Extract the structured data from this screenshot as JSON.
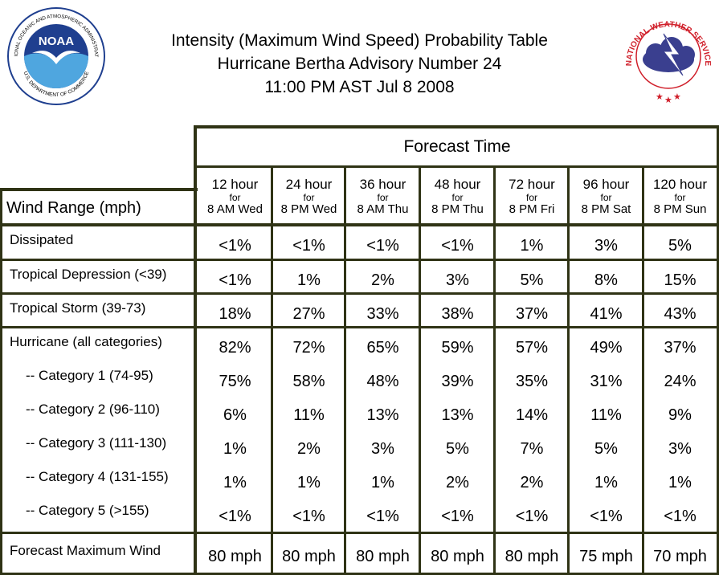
{
  "header": {
    "title_line1": "Intensity (Maximum Wind Speed) Probability Table",
    "title_line2": "Hurricane Bertha Advisory Number 24",
    "title_line3": "11:00 PM AST Jul 8 2008"
  },
  "logos": {
    "noaa_text": "NOAA",
    "noaa_ring": "NATIONAL OCEANIC AND ATMOSPHERIC ADMINISTRATION",
    "noaa_ring_bottom": "U.S. DEPARTMENT OF COMMERCE",
    "nws_ring": "NATIONAL WEATHER SERVICE"
  },
  "table": {
    "forecast_time_label": "Forecast Time",
    "wind_range_label": "Wind Range (mph)",
    "columns": [
      {
        "hours": "12 hour",
        "for": "for",
        "when": "8 AM Wed"
      },
      {
        "hours": "24 hour",
        "for": "for",
        "when": "8 PM Wed"
      },
      {
        "hours": "36 hour",
        "for": "for",
        "when": "8 AM Thu"
      },
      {
        "hours": "48 hour",
        "for": "for",
        "when": "8 PM Thu"
      },
      {
        "hours": "72 hour",
        "for": "for",
        "when": "8 PM Fri"
      },
      {
        "hours": "96 hour",
        "for": "for",
        "when": "8 PM Sat"
      },
      {
        "hours": "120 hour",
        "for": "for",
        "when": "8 PM Sun"
      }
    ],
    "rows": [
      {
        "label": "Dissipated",
        "values": [
          "<1%",
          "<1%",
          "<1%",
          "<1%",
          "1%",
          "3%",
          "5%"
        ]
      },
      {
        "label": "Tropical Depression (<39)",
        "values": [
          "<1%",
          "1%",
          "2%",
          "3%",
          "5%",
          "8%",
          "15%"
        ]
      },
      {
        "label": "Tropical Storm (39-73)",
        "values": [
          "18%",
          "27%",
          "33%",
          "38%",
          "37%",
          "41%",
          "43%"
        ]
      },
      {
        "label": "Hurricane (all categories)",
        "values": [
          "82%",
          "72%",
          "65%",
          "59%",
          "57%",
          "49%",
          "37%"
        ]
      },
      {
        "label": "-- Category 1 (74-95)",
        "values": [
          "75%",
          "58%",
          "48%",
          "39%",
          "35%",
          "31%",
          "24%"
        ]
      },
      {
        "label": "-- Category 2 (96-110)",
        "values": [
          "6%",
          "11%",
          "13%",
          "13%",
          "14%",
          "11%",
          "9%"
        ]
      },
      {
        "label": "-- Category 3 (111-130)",
        "values": [
          "1%",
          "2%",
          "3%",
          "5%",
          "7%",
          "5%",
          "3%"
        ]
      },
      {
        "label": "-- Category 4 (131-155)",
        "values": [
          "1%",
          "1%",
          "1%",
          "2%",
          "2%",
          "1%",
          "1%"
        ]
      },
      {
        "label": "-- Category 5 (>155)",
        "values": [
          "<1%",
          "<1%",
          "<1%",
          "<1%",
          "<1%",
          "<1%",
          "<1%"
        ]
      },
      {
        "label": "Forecast Maximum Wind",
        "values": [
          "80 mph",
          "80 mph",
          "80 mph",
          "80 mph",
          "80 mph",
          "75 mph",
          "70 mph"
        ]
      }
    ]
  },
  "colors": {
    "grid": "#2f3315",
    "noaa_blue": "#1f3f8f",
    "nws_red": "#d01f2a",
    "nws_cloud": "#3a3f8f"
  }
}
